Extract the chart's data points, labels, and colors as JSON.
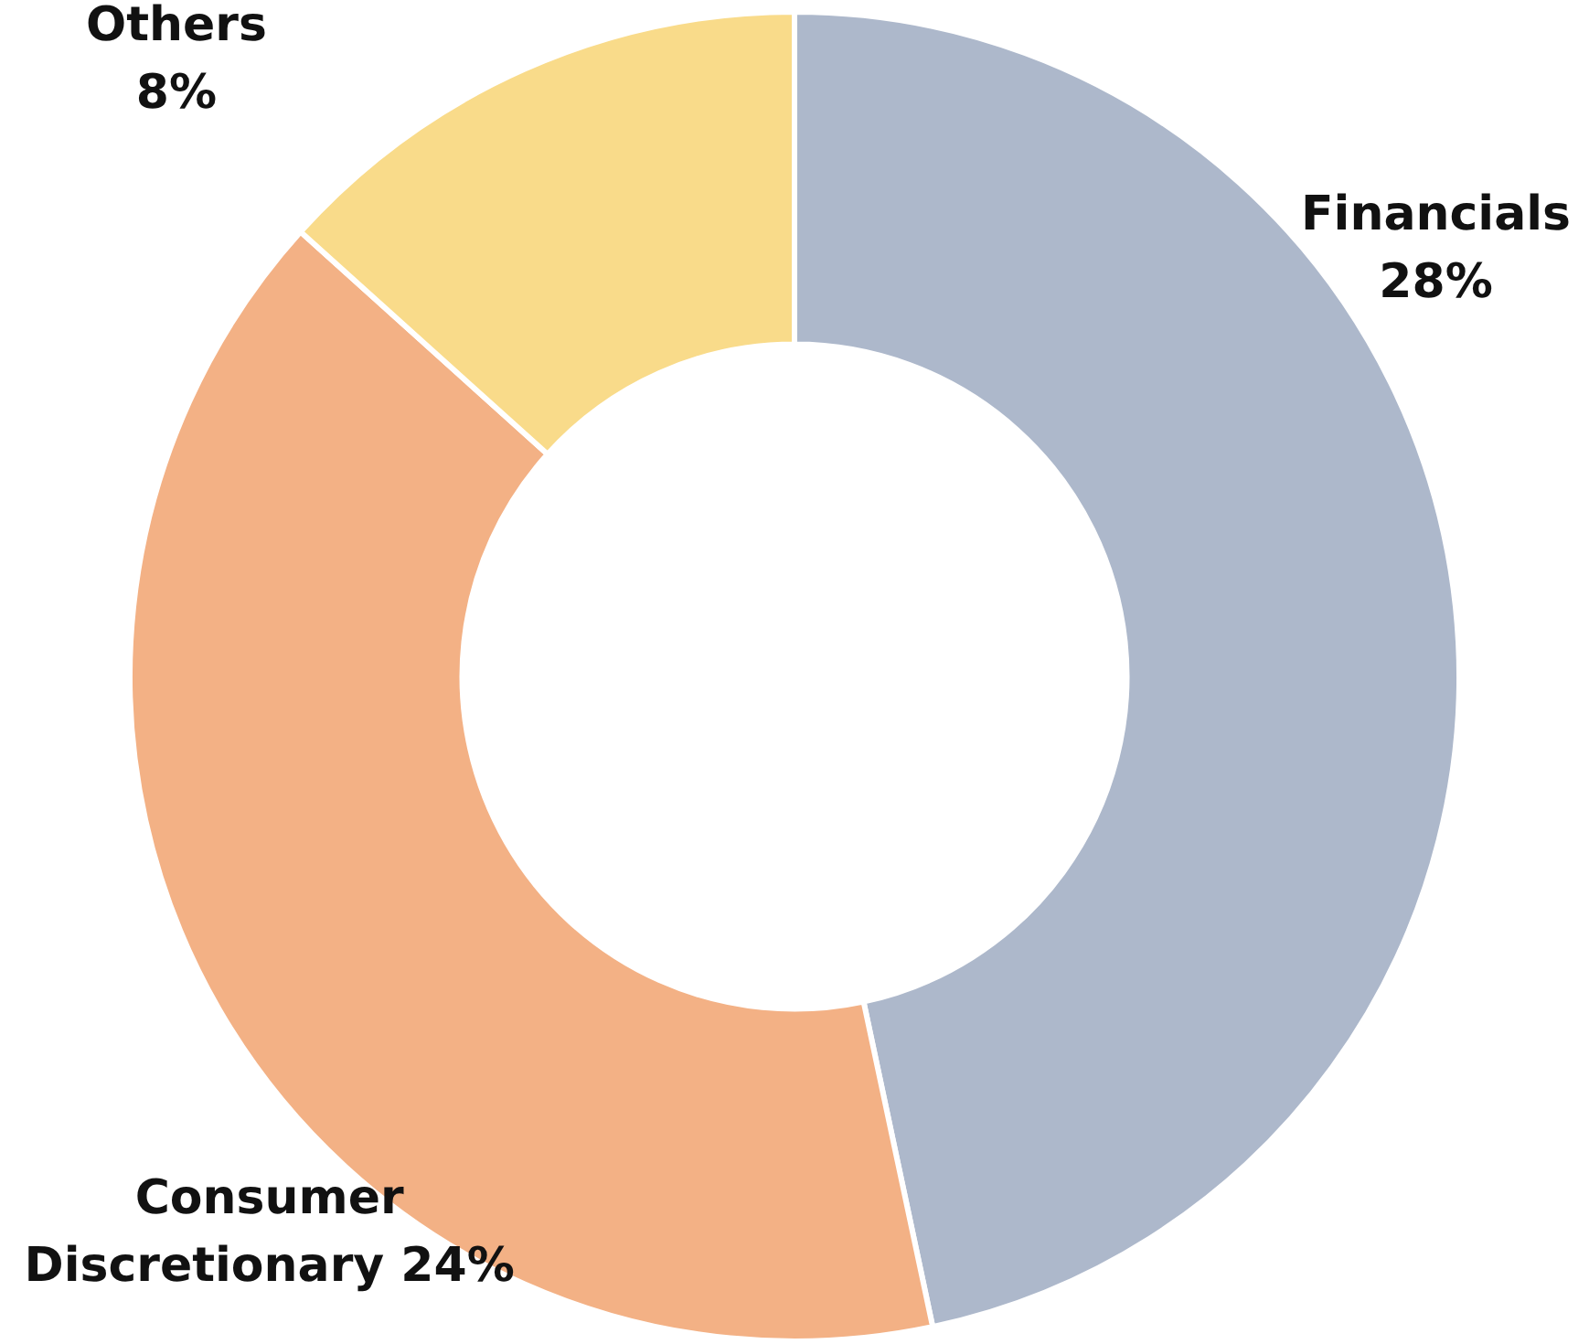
{
  "chart_data": {
    "type": "donut",
    "categories": [
      "Financials",
      "Consumer Discretionary",
      "Others"
    ],
    "values": [
      28,
      24,
      8
    ],
    "colors": [
      "#adb8cb",
      "#f3b185",
      "#f9db8a"
    ],
    "value_labels": [
      "28%",
      "24%",
      "8%"
    ],
    "legend": false
  }
}
